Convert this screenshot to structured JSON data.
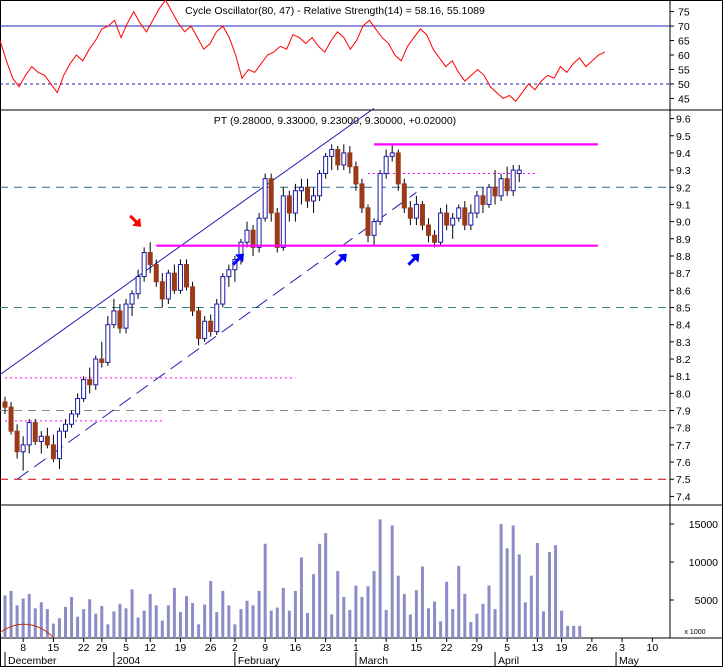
{
  "chart_data": {
    "type": "candlestick",
    "colors": {
      "up": "#1a1aa8",
      "down": "#9b3a18",
      "volume": "#8c8cc8",
      "magenta": "#ff00ff",
      "channel": "#2222b0",
      "cycle_line": "#c03010",
      "red_arrow": "#ff0000",
      "blue_arrow": "#0000ff",
      "oscillator": "#ff0000",
      "grid": "#000000"
    },
    "oscillator": {
      "header": "Cycle Oscillator(80, 47) - Relative Strength(14) = 58.16, 55.1089",
      "yticks": [
        45,
        50,
        55,
        60,
        65,
        70,
        75
      ],
      "ylim": [
        41,
        79
      ],
      "upper_line": 70,
      "lower_line": 50,
      "values": [
        65,
        58,
        52,
        49,
        53,
        56,
        54,
        53,
        50,
        47,
        53,
        57,
        60,
        58,
        62,
        65,
        69,
        70,
        72,
        66,
        71,
        75,
        71,
        68,
        72,
        76,
        79,
        75,
        71,
        68,
        70,
        66,
        62,
        64,
        68,
        70,
        66,
        60,
        52,
        55,
        54,
        57,
        60,
        61,
        63,
        62,
        67,
        66,
        64,
        66,
        63,
        61,
        65,
        68,
        66,
        62,
        65,
        70,
        72,
        69,
        66,
        64,
        60,
        58,
        63,
        66,
        69,
        67,
        62,
        59,
        56,
        58,
        54,
        51,
        53,
        55,
        53,
        49,
        47,
        45,
        46,
        44,
        47,
        50,
        48,
        51,
        53,
        52,
        56,
        54,
        57,
        59,
        56,
        58,
        60,
        61
      ]
    },
    "price": {
      "header": "PT (9.28000, 9.33000, 9.23000, 9.30000, +0.02000)",
      "yticks": [
        "7.4",
        "7.5",
        "7.6",
        "7.7",
        "7.8",
        "7.9",
        "8.0",
        "8.1",
        "8.2",
        "8.3",
        "8.4",
        "8.5",
        "8.6",
        "8.7",
        "8.8",
        "8.9",
        "9.0",
        "9.1",
        "9.2",
        "9.3",
        "9.4",
        "9.5",
        "9.6"
      ],
      "ylim": [
        7.35,
        9.65
      ],
      "candles": [
        [
          7.95,
          7.98,
          7.88,
          7.92
        ],
        [
          7.92,
          7.95,
          7.76,
          7.78
        ],
        [
          7.78,
          7.82,
          7.62,
          7.66
        ],
        [
          7.66,
          7.75,
          7.55,
          7.7
        ],
        [
          7.7,
          7.85,
          7.65,
          7.83
        ],
        [
          7.83,
          7.85,
          7.7,
          7.72
        ],
        [
          7.72,
          7.78,
          7.65,
          7.75
        ],
        [
          7.75,
          7.8,
          7.68,
          7.7
        ],
        [
          7.7,
          7.76,
          7.6,
          7.62
        ],
        [
          7.62,
          7.8,
          7.56,
          7.78
        ],
        [
          7.78,
          7.85,
          7.74,
          7.82
        ],
        [
          7.82,
          7.9,
          7.8,
          7.88
        ],
        [
          7.88,
          8.0,
          7.86,
          7.97
        ],
        [
          7.97,
          8.1,
          7.95,
          8.08
        ],
        [
          8.08,
          8.15,
          8.0,
          8.05
        ],
        [
          8.05,
          8.22,
          8.02,
          8.2
        ],
        [
          8.2,
          8.3,
          8.15,
          8.18
        ],
        [
          8.18,
          8.45,
          8.16,
          8.4
        ],
        [
          8.4,
          8.55,
          8.38,
          8.48
        ],
        [
          8.48,
          8.52,
          8.35,
          8.38
        ],
        [
          8.38,
          8.55,
          8.35,
          8.52
        ],
        [
          8.52,
          8.6,
          8.45,
          8.58
        ],
        [
          8.58,
          8.72,
          8.55,
          8.68
        ],
        [
          8.68,
          8.85,
          8.65,
          8.82
        ],
        [
          8.82,
          8.88,
          8.7,
          8.75
        ],
        [
          8.75,
          8.78,
          8.62,
          8.65
        ],
        [
          8.65,
          8.7,
          8.5,
          8.55
        ],
        [
          8.55,
          8.72,
          8.52,
          8.7
        ],
        [
          8.7,
          8.75,
          8.58,
          8.6
        ],
        [
          8.6,
          8.78,
          8.58,
          8.75
        ],
        [
          8.75,
          8.78,
          8.6,
          8.62
        ],
        [
          8.62,
          8.65,
          8.45,
          8.48
        ],
        [
          8.48,
          8.5,
          8.28,
          8.32
        ],
        [
          8.32,
          8.45,
          8.3,
          8.42
        ],
        [
          8.42,
          8.46,
          8.33,
          8.36
        ],
        [
          8.36,
          8.55,
          8.34,
          8.52
        ],
        [
          8.52,
          8.7,
          8.5,
          8.68
        ],
        [
          8.68,
          8.75,
          8.62,
          8.72
        ],
        [
          8.72,
          8.8,
          8.65,
          8.78
        ],
        [
          8.78,
          8.9,
          8.75,
          8.88
        ],
        [
          8.88,
          9.0,
          8.85,
          8.95
        ],
        [
          8.95,
          8.98,
          8.8,
          8.85
        ],
        [
          8.85,
          9.05,
          8.82,
          9.02
        ],
        [
          9.02,
          9.28,
          9.0,
          9.25
        ],
        [
          9.25,
          9.28,
          9.0,
          9.05
        ],
        [
          9.05,
          9.08,
          8.82,
          8.85
        ],
        [
          8.85,
          9.2,
          8.83,
          9.15
        ],
        [
          9.15,
          9.18,
          9.0,
          9.05
        ],
        [
          9.05,
          9.22,
          9.0,
          9.18
        ],
        [
          9.18,
          9.25,
          9.1,
          9.2
        ],
        [
          9.2,
          9.25,
          9.08,
          9.12
        ],
        [
          9.12,
          9.2,
          9.05,
          9.15
        ],
        [
          9.15,
          9.3,
          9.12,
          9.28
        ],
        [
          9.28,
          9.4,
          9.25,
          9.38
        ],
        [
          9.38,
          9.45,
          9.3,
          9.42
        ],
        [
          9.42,
          9.44,
          9.3,
          9.33
        ],
        [
          9.33,
          9.45,
          9.3,
          9.4
        ],
        [
          9.4,
          9.44,
          9.28,
          9.32
        ],
        [
          9.32,
          9.35,
          9.18,
          9.22
        ],
        [
          9.22,
          9.25,
          9.05,
          9.08
        ],
        [
          9.08,
          9.1,
          8.88,
          8.92
        ],
        [
          8.92,
          9.02,
          8.86,
          9.0
        ],
        [
          9.0,
          9.3,
          8.98,
          9.28
        ],
        [
          9.28,
          9.42,
          9.25,
          9.38
        ],
        [
          9.38,
          9.45,
          9.35,
          9.4
        ],
        [
          9.4,
          9.42,
          9.18,
          9.22
        ],
        [
          9.22,
          9.25,
          9.05,
          9.08
        ],
        [
          9.08,
          9.12,
          8.98,
          9.02
        ],
        [
          9.02,
          9.15,
          8.98,
          9.1
        ],
        [
          9.1,
          9.12,
          8.95,
          8.98
        ],
        [
          8.98,
          9.02,
          8.88,
          8.92
        ],
        [
          8.92,
          8.95,
          8.85,
          8.88
        ],
        [
          8.88,
          9.08,
          8.86,
          9.05
        ],
        [
          9.05,
          9.1,
          8.95,
          8.98
        ],
        [
          8.98,
          9.05,
          8.9,
          9.02
        ],
        [
          9.02,
          9.1,
          9.0,
          9.08
        ],
        [
          9.08,
          9.12,
          8.95,
          8.98
        ],
        [
          8.98,
          9.1,
          8.95,
          9.05
        ],
        [
          9.05,
          9.18,
          9.02,
          9.15
        ],
        [
          9.15,
          9.2,
          9.05,
          9.1
        ],
        [
          9.1,
          9.22,
          9.08,
          9.2
        ],
        [
          9.2,
          9.3,
          9.1,
          9.15
        ],
        [
          9.15,
          9.28,
          9.12,
          9.25
        ],
        [
          9.25,
          9.32,
          9.15,
          9.18
        ],
        [
          9.18,
          9.33,
          9.15,
          9.3
        ],
        [
          9.28,
          9.33,
          9.23,
          9.3
        ]
      ],
      "resistance": 9.45,
      "support": 8.86,
      "dotted_levels": [
        {
          "y": 9.28,
          "from": 60,
          "to": 88
        },
        {
          "y": 8.09,
          "from": 0,
          "to": 48
        },
        {
          "y": 7.84,
          "from": 0,
          "to": 26
        }
      ],
      "dashed_levels": [
        {
          "y": 9.2,
          "color": "#2a6a8a"
        },
        {
          "y": 8.5,
          "color": "#2a8a8a"
        },
        {
          "y": 7.9,
          "color": "#8a8a8a"
        },
        {
          "y": 7.5,
          "color": "#cc0000"
        }
      ],
      "channel": {
        "upper": [
          [
            -2,
            8.08
          ],
          [
            61,
            9.66
          ]
        ],
        "lower": [
          [
            2,
            7.5
          ],
          [
            68,
            9.17
          ]
        ]
      },
      "red_arrow_at": 23,
      "blue_arrows_at": [
        40,
        57,
        69
      ]
    },
    "volume": {
      "yticks": [
        "5000",
        "10000",
        "15000"
      ],
      "unit_label": "x 1000",
      "ylim": [
        0,
        17500
      ],
      "values": [
        5600,
        6200,
        4300,
        5200,
        5800,
        3900,
        4700,
        3800,
        1900,
        2600,
        4100,
        5400,
        2800,
        3800,
        5100,
        3200,
        4200,
        1800,
        3500,
        4500,
        3900,
        6400,
        2700,
        3600,
        5800,
        4300,
        2300,
        4300,
        6600,
        3400,
        5500,
        4600,
        1800,
        4400,
        7500,
        3400,
        6200,
        4300,
        1800,
        3800,
        4900,
        4300,
        6200,
        12400,
        3600,
        4000,
        6600,
        3600,
        6200,
        10600,
        3300,
        8400,
        12400,
        13800,
        3100,
        8800,
        5400,
        3700,
        6900,
        5400,
        6800,
        8800,
        15600,
        3700,
        14800,
        8200,
        5800,
        3100,
        6300,
        9400,
        3900,
        4800,
        2200,
        7400,
        3800,
        9500,
        5800,
        2100,
        3200,
        4500,
        6900,
        3800,
        15000,
        11800,
        14800,
        11000,
        4700,
        8200,
        12500,
        3500,
        11300,
        12200,
        3600,
        1600,
        1600,
        1600
      ]
    },
    "x_labels": [
      {
        "text": "8",
        "i": 3
      },
      {
        "text": "15",
        "i": 8
      },
      {
        "text": "22",
        "i": 13
      },
      {
        "text": "29",
        "i": 16
      },
      {
        "text": "5",
        "i": 20
      },
      {
        "text": "12",
        "i": 24
      },
      {
        "text": "19",
        "i": 29
      },
      {
        "text": "26",
        "i": 34
      },
      {
        "text": "2",
        "i": 38
      },
      {
        "text": "9",
        "i": 43
      },
      {
        "text": "16",
        "i": 48
      },
      {
        "text": "23",
        "i": 53
      },
      {
        "text": "1",
        "i": 58
      },
      {
        "text": "8",
        "i": 63
      },
      {
        "text": "15",
        "i": 68
      },
      {
        "text": "22",
        "i": 73
      },
      {
        "text": "29",
        "i": 78
      },
      {
        "text": "5",
        "i": 83
      },
      {
        "text": "13",
        "i": 88
      },
      {
        "text": "19",
        "i": 92
      },
      {
        "text": "26",
        "i": 97
      },
      {
        "text": "3",
        "i": 102
      },
      {
        "text": "10",
        "i": 107
      }
    ],
    "month_labels": [
      {
        "text": "December",
        "i": 0
      },
      {
        "text": "2004",
        "i": 18
      },
      {
        "text": "February",
        "i": 38
      },
      {
        "text": "March",
        "i": 58
      },
      {
        "text": "April",
        "i": 81
      },
      {
        "text": "May",
        "i": 101
      }
    ]
  }
}
